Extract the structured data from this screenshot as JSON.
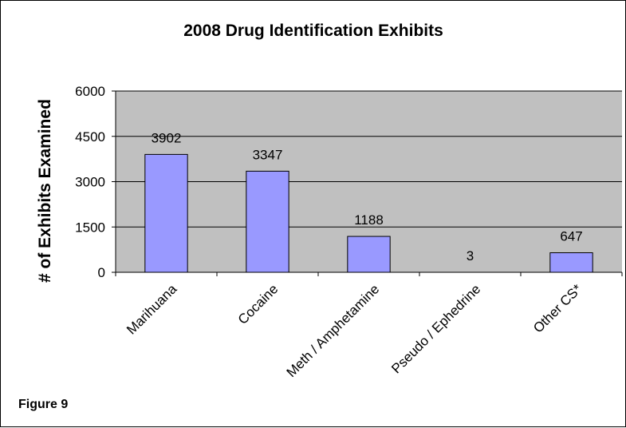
{
  "chart_data": {
    "type": "bar",
    "title": "2008 Drug Identification Exhibits",
    "ylabel": "# of Exhibits Examined",
    "xlabel": "",
    "categories": [
      "Marihuana",
      "Cocaine",
      "Meth / Amphetamine",
      "Pseudo / Ephedrine",
      "Other CS*"
    ],
    "values": [
      3902,
      3347,
      1188,
      3,
      647
    ],
    "data_labels": [
      "3902",
      "3347",
      "1188",
      "3",
      "647"
    ],
    "ylim": [
      0,
      6000
    ],
    "yticks": [
      0,
      1500,
      3000,
      4500,
      6000
    ],
    "ytick_labels": [
      "0",
      "1500",
      "3000",
      "4500",
      "6000"
    ],
    "grid": true,
    "legend": "none",
    "colors": {
      "plot_background": "#c0c0c0",
      "bar_fill": "#9999ff",
      "bar_stroke": "#000000",
      "gridline": "#000000"
    }
  },
  "footer": {
    "figure_label": "Figure 9"
  }
}
